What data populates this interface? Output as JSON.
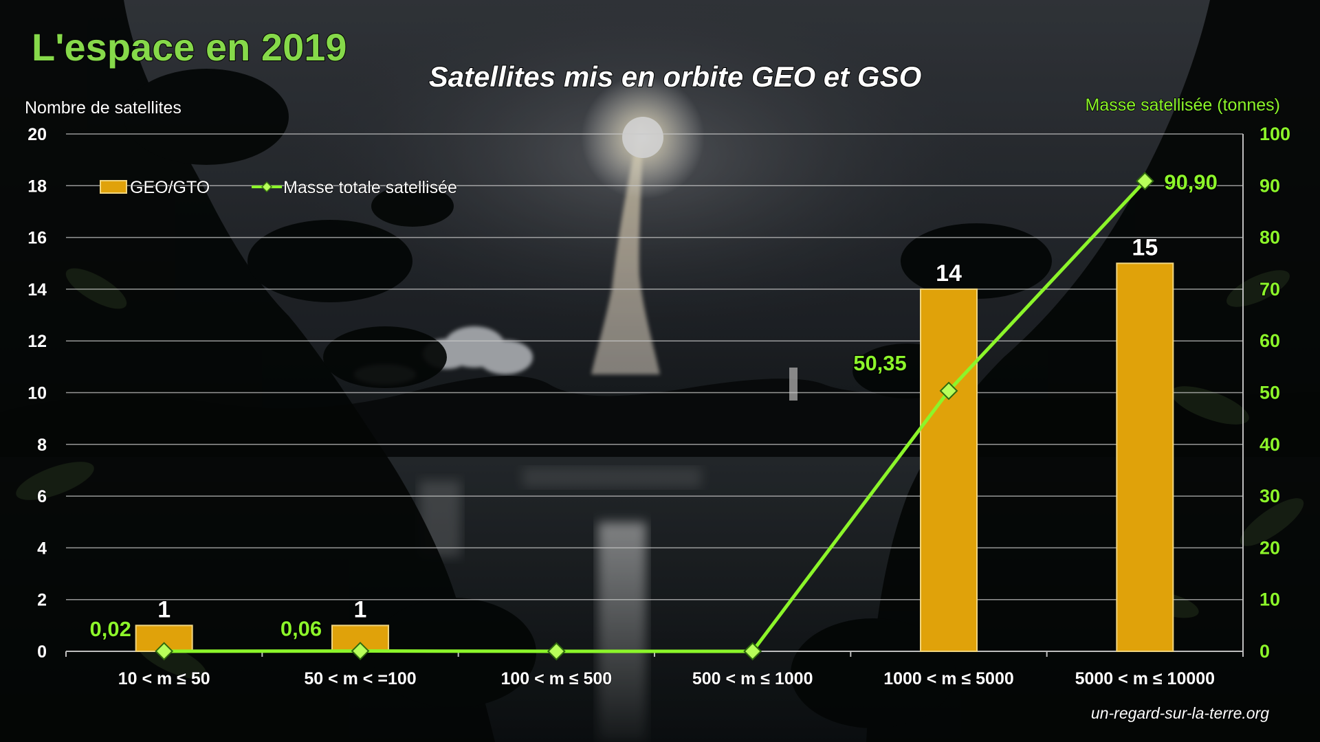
{
  "page": {
    "headline": "L'espace en 2019",
    "footer": "un-regard-sur-la-terre.org"
  },
  "colors": {
    "bar": "#e0a20a",
    "bar_edge": "#f0d580",
    "line": "#8cf52a",
    "marker": "#b8ff5a",
    "headline": "#86d94a",
    "left_axis": "#ffffff",
    "right_axis": "#8cf52a",
    "grid": "#c9c9c9"
  },
  "chart_data": {
    "type": "bar",
    "title": "Satellites mis en orbite GEO et GSO",
    "ylabel": "Nombre de satellites",
    "y2label": "Masse satellisée (tonnes)",
    "categories": [
      "10 < m ≤ 50",
      "50 < m < =100",
      "100 < m ≤ 500",
      "500 < m ≤ 1000",
      "1000 < m ≤ 5000",
      "5000 < m ≤ 10000"
    ],
    "series": [
      {
        "name": "GEO/GTO",
        "type": "bar",
        "axis": "left",
        "values": [
          1,
          1,
          0,
          0,
          14,
          15
        ],
        "labels": [
          "1",
          "1",
          "",
          "",
          "14",
          "15"
        ]
      },
      {
        "name": "Masse totale satellisée",
        "type": "line",
        "axis": "right",
        "values": [
          0.02,
          0.06,
          0,
          0,
          50.35,
          90.9
        ],
        "labels": [
          "0,02",
          "0,06",
          "",
          "",
          "50,35",
          "90,90"
        ]
      }
    ],
    "ylim": [
      0,
      20
    ],
    "y_ticks": [
      0,
      2,
      4,
      6,
      8,
      10,
      12,
      14,
      16,
      18,
      20
    ],
    "y2lim": [
      0,
      100
    ],
    "y2_ticks": [
      0,
      10,
      20,
      30,
      40,
      50,
      60,
      70,
      80,
      90,
      100
    ],
    "grid": true,
    "legend_position": "top-left"
  }
}
